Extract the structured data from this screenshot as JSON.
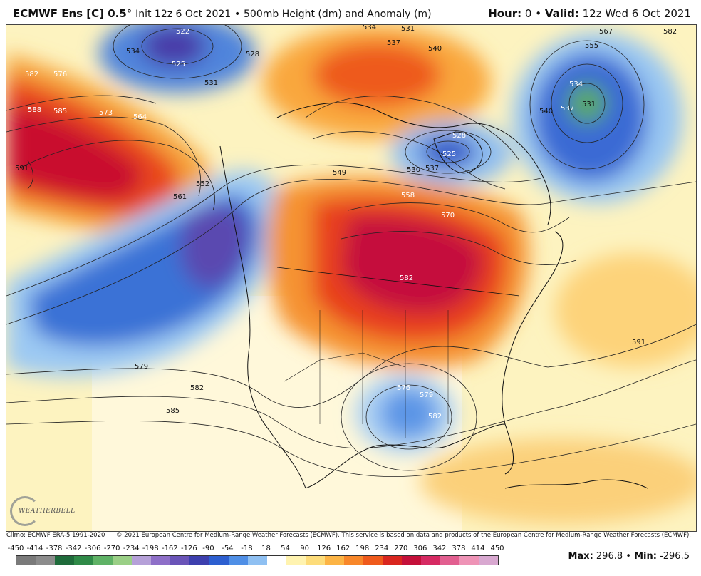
{
  "header": {
    "model": "ECMWF Ens [C] 0.5",
    "degree": "°",
    "init": "Init 12z 6 Oct 2021",
    "sep": "•",
    "product": "500mb Height (dm) and Anomaly (m)",
    "hour_label": "Hour:",
    "hour_value": "0",
    "valid_label": "Valid:",
    "valid_value": "12z Wed 6 Oct 2021"
  },
  "map": {
    "contour_labels": [
      {
        "text": "522"
      },
      {
        "text": "525"
      },
      {
        "text": "534"
      },
      {
        "text": "528"
      },
      {
        "text": "531"
      },
      {
        "text": "534"
      },
      {
        "text": "531"
      },
      {
        "text": "537"
      },
      {
        "text": "540"
      },
      {
        "text": "582"
      },
      {
        "text": "576"
      },
      {
        "text": "588"
      },
      {
        "text": "585"
      },
      {
        "text": "573"
      },
      {
        "text": "564"
      },
      {
        "text": "591"
      },
      {
        "text": "561"
      },
      {
        "text": "552"
      },
      {
        "text": "567"
      },
      {
        "text": "582"
      },
      {
        "text": "555"
      },
      {
        "text": "534"
      },
      {
        "text": "531"
      },
      {
        "text": "537"
      },
      {
        "text": "540"
      },
      {
        "text": "528"
      },
      {
        "text": "525"
      },
      {
        "text": "537"
      },
      {
        "text": "530"
      },
      {
        "text": "549"
      },
      {
        "text": "558"
      },
      {
        "text": "570"
      },
      {
        "text": "582"
      },
      {
        "text": "579"
      },
      {
        "text": "582"
      },
      {
        "text": "585"
      },
      {
        "text": "576"
      },
      {
        "text": "579"
      },
      {
        "text": "582"
      },
      {
        "text": "591"
      }
    ],
    "colors": {
      "ocean_neutral": "#fdf6c8",
      "land_neutral": "#fff9d8",
      "warm_strong": "#cf1430",
      "warm_mid": "#f05a1e",
      "warm_light": "#fdb640",
      "cool_light": "#a9cff4",
      "cool_mid": "#3f77d8",
      "cool_strong": "#4a3aa8",
      "coast": "#111111",
      "contour": "#222222"
    }
  },
  "logo": {
    "name": "WEATHERBELL"
  },
  "credits": {
    "climo": "Climo: ECMWF ERA-5 1991-2020",
    "copyright": "© 2021 European Centre for Medium-Range Weather Forecasts (ECMWF). This service is based on data and products of the European Centre for Medium-Range Weather Forecasts (ECMWF)."
  },
  "colorbar": {
    "ticks": [
      "-450",
      "-414",
      "-378",
      "-342",
      "-306",
      "-270",
      "-234",
      "-198",
      "-162",
      "-126",
      "-90",
      "-54",
      "-18",
      "18",
      "54",
      "90",
      "126",
      "162",
      "198",
      "234",
      "270",
      "306",
      "342",
      "378",
      "414",
      "450"
    ],
    "colors": [
      "#7a7a7a",
      "#8c8c8c",
      "#1f6b3b",
      "#2f8a48",
      "#5fb266",
      "#9acf86",
      "#b5a0d8",
      "#8e6fc8",
      "#6a54b8",
      "#3d3fae",
      "#2d5fd0",
      "#4f8fe6",
      "#8fc0f2",
      "#ffffff",
      "#fff3b0",
      "#fddc7a",
      "#fcb445",
      "#f8872a",
      "#ef5a1c",
      "#d9261f",
      "#c4103a",
      "#d62a63",
      "#e25f90",
      "#ee93b6",
      "#d8a8d0"
    ]
  },
  "stats": {
    "max_label": "Max:",
    "max_value": "296.8",
    "min_label": "Min:",
    "min_value": "-296.5"
  }
}
